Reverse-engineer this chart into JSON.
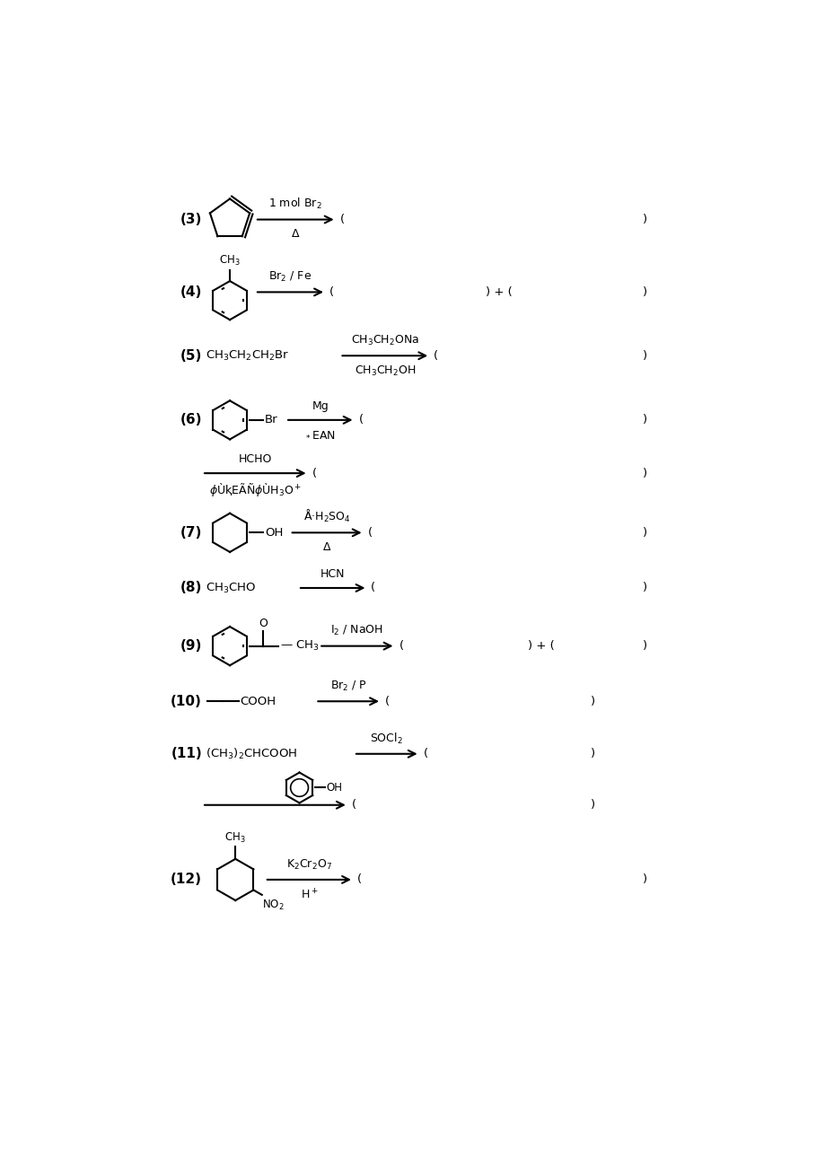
{
  "background": "#ffffff",
  "reactions": [
    {
      "num": "(3)",
      "y": 11.85
    },
    {
      "num": "(4)",
      "y": 10.85
    },
    {
      "num": "(5)",
      "y": 9.9
    },
    {
      "num": "(6)",
      "y": 9.0
    },
    {
      "num": "",
      "y": 8.2
    },
    {
      "num": "(7)",
      "y": 7.35
    },
    {
      "num": "(8)",
      "y": 6.55
    },
    {
      "num": "(9)",
      "y": 5.7
    },
    {
      "num": "(10)",
      "y": 4.9
    },
    {
      "num": "(11)",
      "y": 4.15
    },
    {
      "num": "",
      "y": 3.4
    },
    {
      "num": "(12)",
      "y": 2.35
    }
  ]
}
